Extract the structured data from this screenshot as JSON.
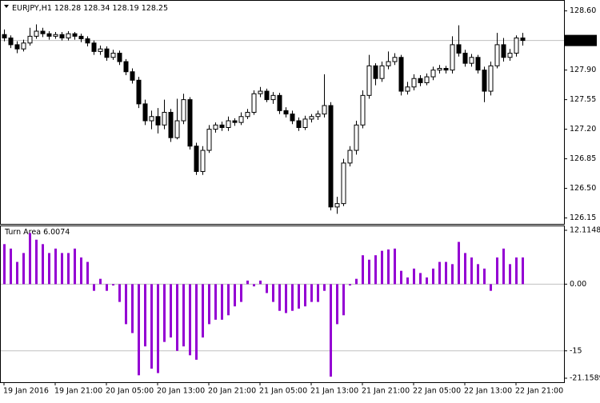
{
  "chart_data": [
    {
      "type": "candlestick",
      "symbol": "EURJPY,H1",
      "categories": [
        "19 Jan 2016",
        null,
        null,
        null,
        null,
        null,
        null,
        null,
        "19 Jan 21:00",
        null,
        null,
        null,
        null,
        null,
        null,
        null,
        "20 Jan 05:00",
        null,
        null,
        null,
        null,
        null,
        null,
        null,
        "20 Jan 13:00",
        null,
        null,
        null,
        null,
        null,
        null,
        null,
        "20 Jan 21:00",
        null,
        null,
        null,
        null,
        null,
        null,
        null,
        "21 Jan 05:00",
        null,
        null,
        null,
        null,
        null,
        null,
        null,
        "21 Jan 13:00",
        null,
        null,
        null,
        null,
        null,
        null,
        null,
        "21 Jan 21:00",
        null,
        null,
        null,
        null,
        null,
        null,
        null,
        "22 Jan 05:00",
        null,
        null,
        null,
        null,
        null,
        null,
        null,
        "22 Jan 13:00",
        null,
        null,
        null,
        null,
        null,
        null,
        null,
        "22 Jan 21:00",
        null
      ],
      "open": [
        128.32,
        128.28,
        128.2,
        128.15,
        128.22,
        128.3,
        128.36,
        128.33,
        128.3,
        128.32,
        128.28,
        128.33,
        128.3,
        128.27,
        128.22,
        128.12,
        128.15,
        128.05,
        128.1,
        128.0,
        127.88,
        127.78,
        127.5,
        127.3,
        127.35,
        127.25,
        127.4,
        127.1,
        127.3,
        127.55,
        127.0,
        126.7,
        126.95,
        127.2,
        127.25,
        127.22,
        127.3,
        127.28,
        127.35,
        127.4,
        127.62,
        127.65,
        127.55,
        127.6,
        127.42,
        127.38,
        127.3,
        127.22,
        127.32,
        127.35,
        127.38,
        127.48,
        126.28,
        126.32,
        126.8,
        126.95,
        127.25,
        127.6,
        127.95,
        127.8,
        127.95,
        128.0,
        128.05,
        127.65,
        127.7,
        127.8,
        127.75,
        127.82,
        127.9,
        127.92,
        127.9,
        128.2,
        128.1,
        127.98,
        128.05,
        127.9,
        127.65,
        127.95,
        128.2,
        128.05,
        128.1,
        128.28
      ],
      "high": [
        128.38,
        128.31,
        128.24,
        128.26,
        128.4,
        128.44,
        128.4,
        128.36,
        128.35,
        128.35,
        128.36,
        128.35,
        128.33,
        128.3,
        128.25,
        128.19,
        128.18,
        128.14,
        128.13,
        128.03,
        127.92,
        127.82,
        127.55,
        127.42,
        127.45,
        127.55,
        127.44,
        127.56,
        127.62,
        127.58,
        127.04,
        127.0,
        127.25,
        127.28,
        127.29,
        127.35,
        127.33,
        127.4,
        127.44,
        127.66,
        127.7,
        127.68,
        127.64,
        127.63,
        127.46,
        127.42,
        127.34,
        127.36,
        127.38,
        127.42,
        127.85,
        127.52,
        126.4,
        126.85,
        127.0,
        127.3,
        127.66,
        128.08,
        127.98,
        128.0,
        128.12,
        128.1,
        128.08,
        127.76,
        127.85,
        127.84,
        127.86,
        127.94,
        127.96,
        127.95,
        128.3,
        128.43,
        128.14,
        128.09,
        128.08,
        127.94,
        128.0,
        128.34,
        128.28,
        128.15,
        128.31,
        128.34
      ],
      "low": [
        128.24,
        128.16,
        128.1,
        128.12,
        128.19,
        128.27,
        128.29,
        128.26,
        128.27,
        128.25,
        128.25,
        128.26,
        128.23,
        128.18,
        128.08,
        128.08,
        128.01,
        128.02,
        127.96,
        127.84,
        127.74,
        127.45,
        127.25,
        127.2,
        127.15,
        127.2,
        127.05,
        127.08,
        127.26,
        126.96,
        126.66,
        126.66,
        126.92,
        127.16,
        127.18,
        127.18,
        127.24,
        127.25,
        127.32,
        127.37,
        127.58,
        127.52,
        127.5,
        127.38,
        127.34,
        127.26,
        127.18,
        127.19,
        127.28,
        127.31,
        127.34,
        126.24,
        126.2,
        126.29,
        126.76,
        126.9,
        127.21,
        127.56,
        127.72,
        127.76,
        127.91,
        127.96,
        127.6,
        127.61,
        127.66,
        127.71,
        127.72,
        127.78,
        127.86,
        127.86,
        127.86,
        128.06,
        127.94,
        127.94,
        127.86,
        127.52,
        127.6,
        127.92,
        128.0,
        128.01,
        128.06,
        128.19
      ],
      "close": [
        128.28,
        128.2,
        128.15,
        128.22,
        128.3,
        128.36,
        128.33,
        128.3,
        128.32,
        128.28,
        128.33,
        128.3,
        128.27,
        128.22,
        128.12,
        128.15,
        128.05,
        128.1,
        128.0,
        127.88,
        127.78,
        127.5,
        127.3,
        127.35,
        127.25,
        127.4,
        127.1,
        127.3,
        127.55,
        127.0,
        126.7,
        126.95,
        127.2,
        127.25,
        127.22,
        127.3,
        127.28,
        127.35,
        127.4,
        127.62,
        127.65,
        127.55,
        127.6,
        127.42,
        127.38,
        127.3,
        127.22,
        127.32,
        127.35,
        127.38,
        127.48,
        126.28,
        126.32,
        126.8,
        126.95,
        127.25,
        127.6,
        127.95,
        127.8,
        127.95,
        128.0,
        128.05,
        127.65,
        127.7,
        127.8,
        127.75,
        127.82,
        127.9,
        127.92,
        127.9,
        128.2,
        128.1,
        127.98,
        128.05,
        127.9,
        127.65,
        127.95,
        128.2,
        128.05,
        128.1,
        128.28,
        128.25
      ],
      "ylim": [
        126.08,
        128.71
      ],
      "yticks": [
        {
          "value": 128.6,
          "label": "128.60"
        },
        128.25,
        {
          "value": 127.9,
          "label": "127.90"
        },
        127.55,
        {
          "value": 127.2,
          "label": "127.20"
        },
        126.85,
        {
          "value": 126.5,
          "label": "126.50"
        },
        126.15
      ],
      "up_color": "#ffffff",
      "down_color": "#000000"
    },
    {
      "type": "bar",
      "name": "Turn Area",
      "values": [
        9,
        8,
        5,
        7,
        11.5,
        10,
        9,
        7,
        8,
        7,
        7,
        8,
        6,
        5,
        -1.5,
        1.2,
        -1.5,
        -0.3,
        -4,
        -9,
        -11,
        -20.5,
        -14,
        -19,
        -20,
        -13,
        -12,
        -15,
        -14,
        -16,
        -17,
        -12,
        -9,
        -8,
        -8,
        -7,
        -5,
        -4,
        0.8,
        -0.5,
        0.8,
        -2,
        -4,
        -6,
        -6.5,
        -6,
        -5.5,
        -5,
        -4,
        -4,
        -1.5,
        -20.8,
        -9,
        -7,
        -0.3,
        1.2,
        6.5,
        5.5,
        6.5,
        7.5,
        7.8,
        8,
        3,
        1.5,
        3.5,
        2.5,
        1.5,
        3.5,
        5,
        5,
        4.5,
        9.5,
        7,
        6,
        4.5,
        3.5,
        -1.5,
        6,
        8,
        4.5,
        6,
        6.0074
      ],
      "color": "#9400d3",
      "ylim": [
        -21.1589,
        12.1148
      ],
      "yticks": [
        12.1148,
        {
          "value": 0,
          "label": "0.00"
        },
        -15,
        -21.1589
      ]
    }
  ]
}
